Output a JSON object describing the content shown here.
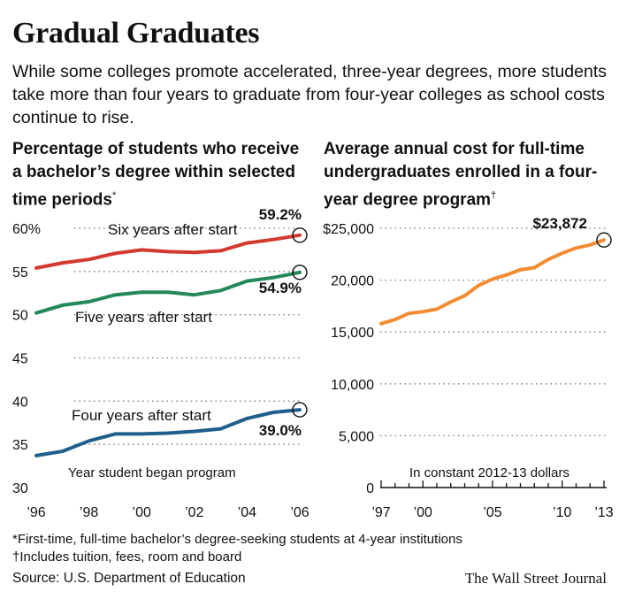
{
  "title": "Gradual Graduates",
  "subtitle": "While some colleges promote accelerated, three-year degrees, more students take more than four years to graduate from four-year colleges as school costs continue to rise.",
  "colors": {
    "six": "#d23a2e",
    "five": "#23885a",
    "four": "#1f5f8b",
    "cost": "#f28c32"
  },
  "chart_data": [
    {
      "type": "line",
      "title": "Percentage of students who receive a bachelor’s degree within selected time periods",
      "title_marker": "*",
      "xlabel": "Year student began program",
      "ylabel": "",
      "ylim": [
        30,
        60
      ],
      "yticks": [
        30,
        35,
        40,
        45,
        50,
        55,
        60
      ],
      "ytick_labels": [
        "30",
        "35",
        "40",
        "45",
        "50",
        "55",
        "60%"
      ],
      "xlim": [
        1996,
        2006
      ],
      "xticks": [
        1996,
        1998,
        2000,
        2002,
        2004,
        2006
      ],
      "xtick_labels": [
        "’96",
        "’98",
        "’00",
        "’02",
        "’04",
        "’06"
      ],
      "x": [
        1996,
        1997,
        1998,
        1999,
        2000,
        2001,
        2002,
        2003,
        2004,
        2005,
        2006
      ],
      "series": [
        {
          "name": "Six years after start",
          "color_key": "six",
          "end_label": "59.2%",
          "values": [
            55.4,
            56.0,
            56.4,
            57.1,
            57.5,
            57.3,
            57.2,
            57.4,
            58.3,
            58.7,
            59.2
          ]
        },
        {
          "name": "Five years after start",
          "color_key": "five",
          "end_label": "54.9%",
          "values": [
            50.2,
            51.1,
            51.5,
            52.3,
            52.6,
            52.6,
            52.3,
            52.8,
            53.9,
            54.3,
            54.9
          ]
        },
        {
          "name": "Four years after start",
          "color_key": "four",
          "end_label": "39.0%",
          "values": [
            33.7,
            34.2,
            35.4,
            36.2,
            36.2,
            36.3,
            36.5,
            36.8,
            38.0,
            38.7,
            39.0
          ]
        }
      ]
    },
    {
      "type": "line",
      "title": "Average annual cost for full-time undergraduates enrolled in a four-year degree program",
      "title_marker": "†",
      "xlabel": "In constant 2012-13 dollars",
      "ylabel": "",
      "ylim": [
        0,
        25000
      ],
      "yticks": [
        0,
        5000,
        10000,
        15000,
        20000,
        25000
      ],
      "ytick_labels": [
        "0",
        "5,000",
        "10,000",
        "15,000",
        "20,000",
        "$25,000"
      ],
      "xlim": [
        1997,
        2013
      ],
      "xticks": [
        1997,
        2000,
        2005,
        2010,
        2013
      ],
      "xtick_labels": [
        "’97",
        "’00",
        "’05",
        "’10",
        "’13"
      ],
      "x": [
        1997,
        1998,
        1999,
        2000,
        2001,
        2002,
        2003,
        2004,
        2005,
        2006,
        2007,
        2008,
        2009,
        2010,
        2011,
        2012,
        2013
      ],
      "series": [
        {
          "name": "Average annual cost",
          "color_key": "cost",
          "end_label": "$23,872",
          "values": [
            15800,
            16200,
            16800,
            16950,
            17200,
            17900,
            18500,
            19500,
            20100,
            20500,
            21000,
            21200,
            22000,
            22600,
            23100,
            23400,
            23872
          ]
        }
      ]
    }
  ],
  "footnotes": [
    "*First-time, full-time bachelor’s degree-seeking students at 4-year institutions",
    "†Includes tuition, fees, room and board"
  ],
  "source": "Source: U.S. Department of Education",
  "credit": "The Wall Street Journal"
}
